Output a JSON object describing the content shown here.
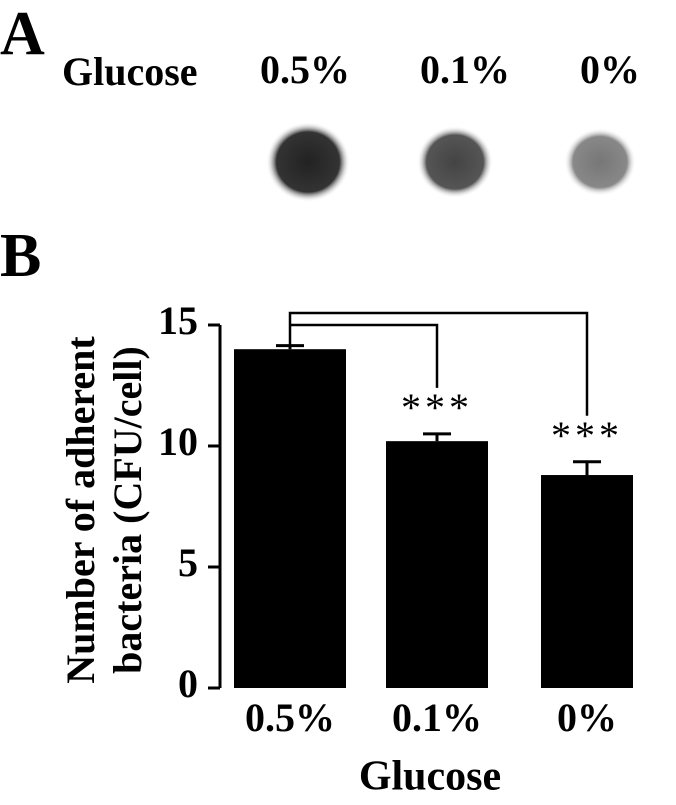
{
  "panel_a": {
    "label": "A",
    "row_label": "Glucose",
    "lanes": [
      "0.5%",
      "0.1%",
      "0%"
    ]
  },
  "chart_data": {
    "type": "bar",
    "panel_label": "B",
    "categories": [
      "0.5%",
      "0.1%",
      "0%"
    ],
    "values": [
      14,
      10.2,
      8.8
    ],
    "errors": [
      0.15,
      0.3,
      0.55
    ],
    "significance": [
      null,
      "***",
      "***"
    ],
    "color": "#000000",
    "x_label": "Glucose",
    "y_label": [
      "Number of adherent",
      "bacteria (CFU/cell)"
    ],
    "ylim": [
      0,
      15
    ],
    "yticks": [
      0,
      5,
      10,
      15
    ],
    "grid": false
  }
}
